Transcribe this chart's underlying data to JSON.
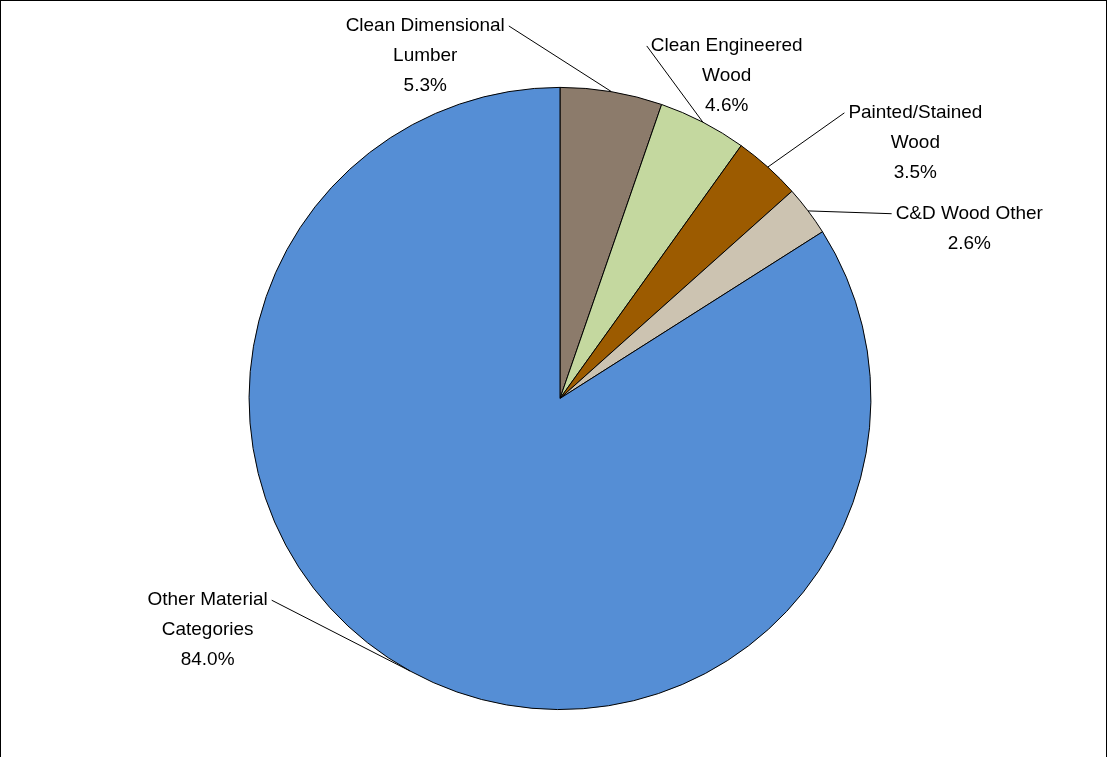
{
  "chart_data": {
    "type": "pie",
    "categories": [
      "Clean Dimensional Lumber",
      "Clean Engineered Wood",
      "Painted/Stained Wood",
      "C&D Wood Other",
      "Other Material Categories"
    ],
    "values": [
      5.3,
      4.6,
      3.5,
      2.6,
      84.0
    ],
    "colors": [
      "#8c7b6b",
      "#c4d89f",
      "#9c5b00",
      "#ccc3b1",
      "#558ed5"
    ],
    "value_labels": [
      "5.3%",
      "4.6%",
      "3.5%",
      "2.6%",
      "84.0%"
    ],
    "legend": false
  }
}
